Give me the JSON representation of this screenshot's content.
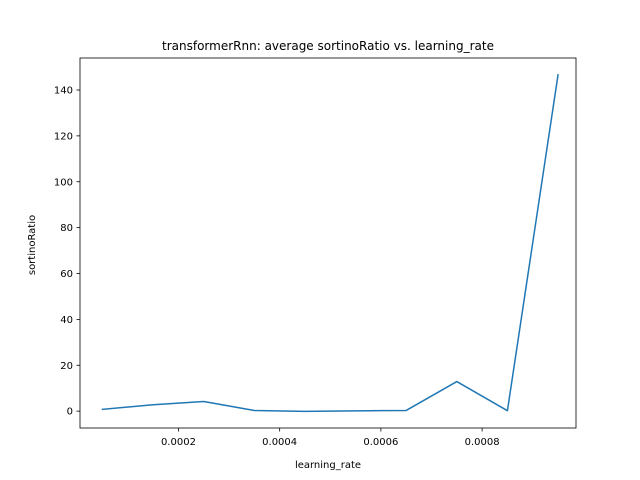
{
  "chart_data": {
    "type": "line",
    "title": "transformerRnn: average sortinoRatio vs. learning_rate",
    "xlabel": "learning_rate",
    "ylabel": "sortinoRatio",
    "xlim": [
      5.5e-06,
      0.0009855
    ],
    "ylim": [
      -7.35,
      153.95
    ],
    "xticks": [
      0.0002,
      0.0004,
      0.0006,
      0.0008
    ],
    "xtick_labels": [
      "0.0002",
      "0.0004",
      "0.0006",
      "0.0008"
    ],
    "yticks": [
      0,
      20,
      40,
      60,
      80,
      100,
      120,
      140
    ],
    "ytick_labels": [
      "0",
      "20",
      "40",
      "60",
      "80",
      "100",
      "120",
      "140"
    ],
    "grid": false,
    "legend": "none",
    "series": [
      {
        "color": "#1f77b4",
        "x": [
          5e-05,
          0.00015,
          0.00025,
          0.00035,
          0.00045,
          0.00055,
          0.00065,
          0.00075,
          0.00085,
          0.00095
        ],
        "y": [
          0.8,
          2.8,
          4.2,
          0.3,
          -0.1,
          0.1,
          0.3,
          12.9,
          0.2,
          146.6
        ]
      }
    ]
  }
}
